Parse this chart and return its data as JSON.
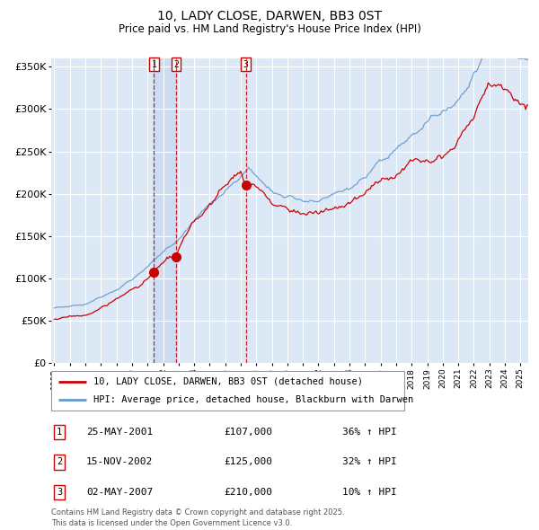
{
  "title": "10, LADY CLOSE, DARWEN, BB3 0ST",
  "subtitle": "Price paid vs. HM Land Registry's House Price Index (HPI)",
  "legend_property": "10, LADY CLOSE, DARWEN, BB3 0ST (detached house)",
  "legend_hpi": "HPI: Average price, detached house, Blackburn with Darwen",
  "transactions": [
    {
      "num": 1,
      "date": "2001-05-25",
      "price": 107000
    },
    {
      "num": 2,
      "date": "2002-11-15",
      "price": 125000
    },
    {
      "num": 3,
      "date": "2007-05-02",
      "price": 210000
    }
  ],
  "table_rows": [
    {
      "num": 1,
      "date": "25-MAY-2001",
      "price": "£107,000",
      "hpi": "36% ↑ HPI"
    },
    {
      "num": 2,
      "date": "15-NOV-2002",
      "price": "£125,000",
      "hpi": "32% ↑ HPI"
    },
    {
      "num": 3,
      "date": "02-MAY-2007",
      "price": "£210,000",
      "hpi": "10% ↑ HPI"
    }
  ],
  "property_color": "#cc0000",
  "hpi_color": "#6699cc",
  "background_plot": "#dce8f5",
  "background_fig": "#ffffff",
  "grid_color": "#ffffff",
  "dashed_color": "#cc0000",
  "span_color": "#c8daf0",
  "ylim": [
    0,
    360000
  ],
  "yticks": [
    0,
    50000,
    100000,
    150000,
    200000,
    250000,
    300000,
    350000
  ],
  "ytick_labels": [
    "£0",
    "£50K",
    "£100K",
    "£150K",
    "£200K",
    "£250K",
    "£300K",
    "£350K"
  ],
  "xstart": 1994.8,
  "xend": 2025.5,
  "footer": "Contains HM Land Registry data © Crown copyright and database right 2025.\nThis data is licensed under the Open Government Licence v3.0."
}
